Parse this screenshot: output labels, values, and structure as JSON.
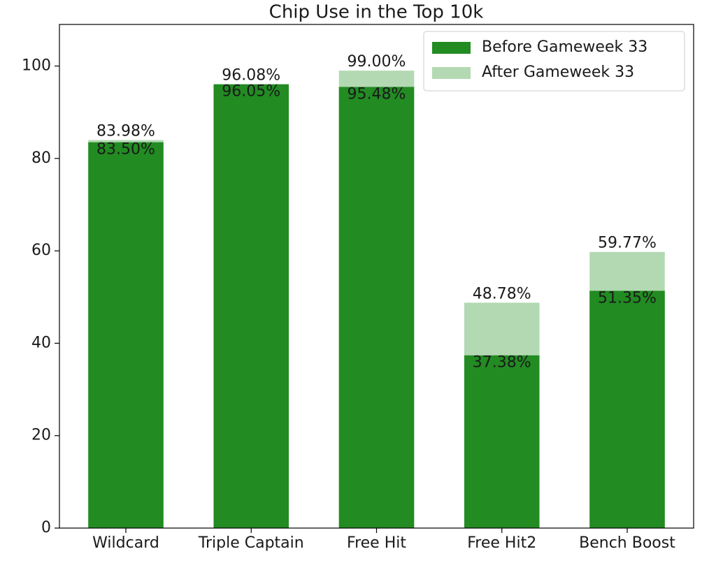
{
  "chart_data": {
    "type": "bar",
    "title": "Chip Use in the Top 10k",
    "categories": [
      "Wildcard",
      "Triple Captain",
      "Free Hit",
      "Free Hit2",
      "Bench Boost"
    ],
    "series": [
      {
        "name": "Before Gameweek 33",
        "color": "#228b22",
        "values": [
          83.5,
          96.05,
          95.48,
          37.38,
          51.35
        ],
        "value_labels": [
          "83.50%",
          "96.05%",
          "95.48%",
          "37.38%",
          "51.35%"
        ]
      },
      {
        "name": "After Gameweek 33",
        "color": "#b3d9b3",
        "values": [
          83.98,
          96.08,
          99.0,
          48.78,
          59.77
        ],
        "value_labels": [
          "83.98%",
          "96.08%",
          "99.00%",
          "48.78%",
          "59.77%"
        ]
      }
    ],
    "ylim": [
      0,
      109
    ],
    "yticks": [
      0,
      20,
      40,
      60,
      80,
      100
    ],
    "grid": false,
    "legend": "upper right"
  }
}
